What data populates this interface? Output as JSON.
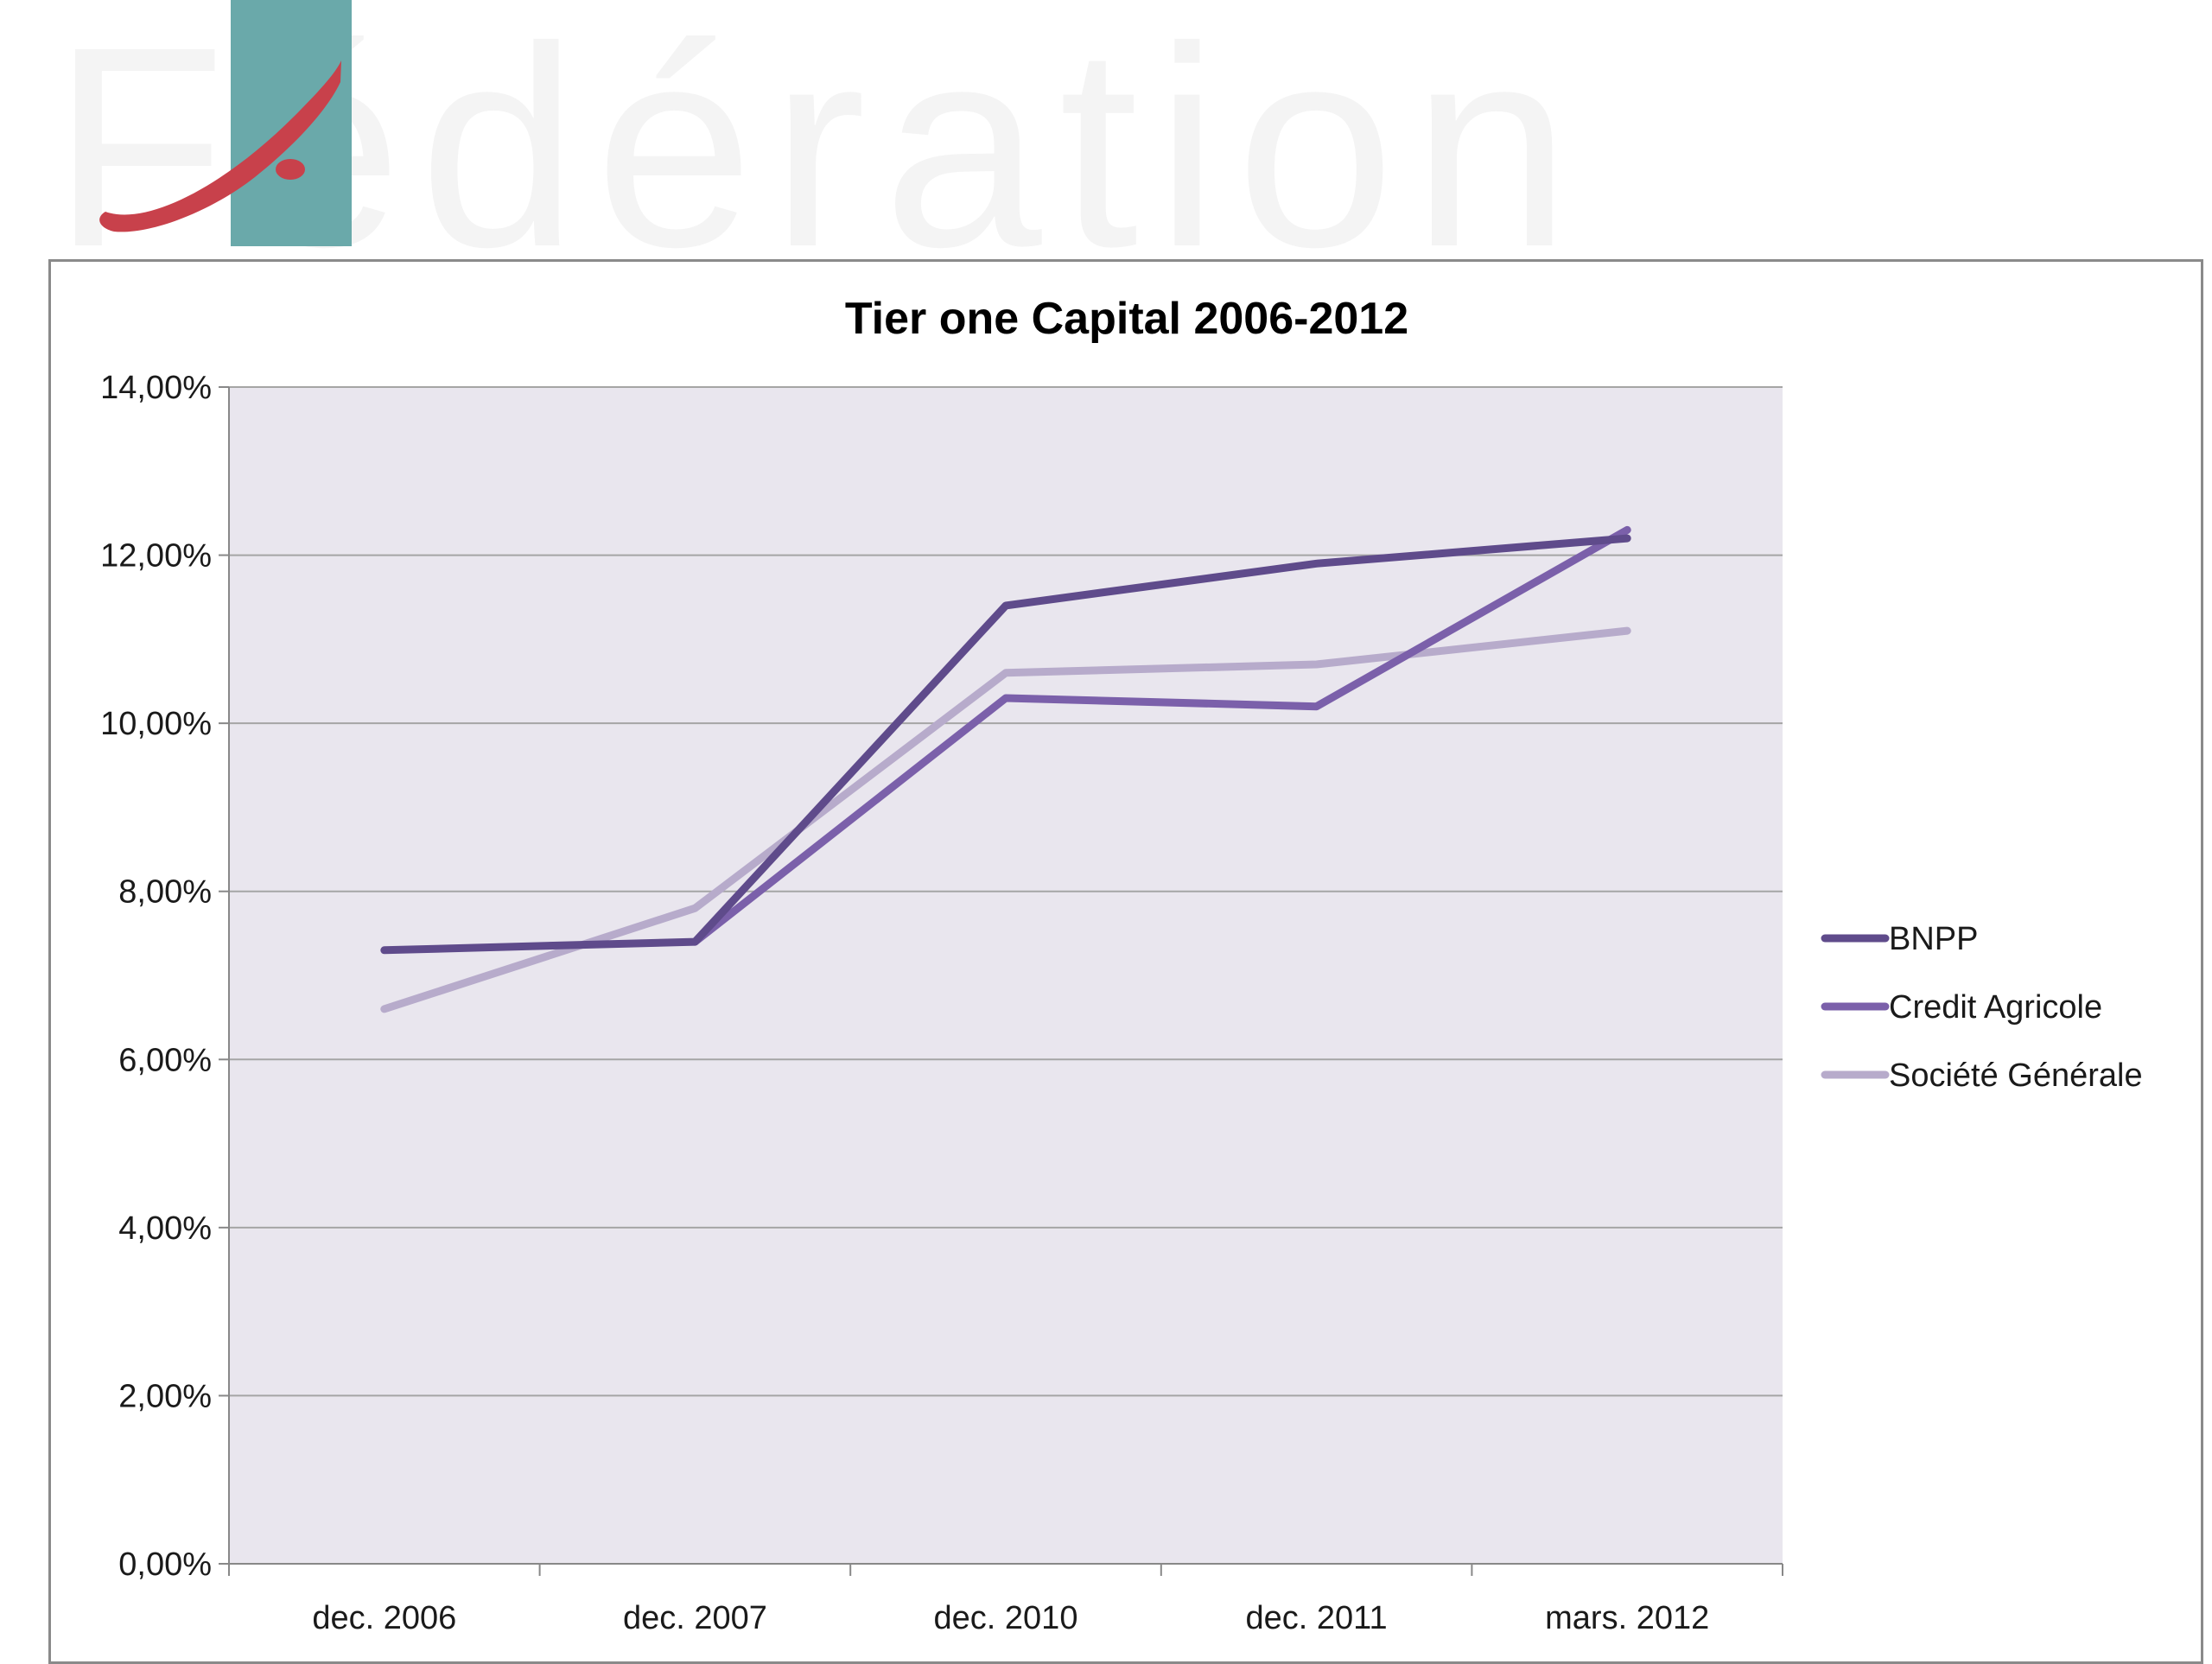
{
  "watermark": {
    "text": "Fédération"
  },
  "logo": {
    "name": "federation-logo"
  },
  "colors": {
    "plot_background": "#e9e6ee",
    "gridline": "#a5a5a5",
    "axis": "#888888",
    "logo_teal": "#6aa9aa",
    "logo_red": "#c8414b"
  },
  "chart_data": {
    "type": "line",
    "title": "Tier one Capital 2006-2012",
    "xlabel": "",
    "ylabel": "",
    "categories": [
      "dec. 2006",
      "dec. 2007",
      "dec. 2010",
      "dec. 2011",
      "mars. 2012"
    ],
    "ylim": [
      0,
      14
    ],
    "yticks": [
      0,
      2,
      4,
      6,
      8,
      10,
      12,
      14
    ],
    "ytick_labels": [
      "0,00%",
      "2,00%",
      "4,00%",
      "6,00%",
      "8,00%",
      "10,00%",
      "12,00%",
      "14,00%"
    ],
    "grid": true,
    "legend_position": "right",
    "series": [
      {
        "name": "BNPP",
        "color": "#5f4b8b",
        "values": [
          7.3,
          7.4,
          11.4,
          11.9,
          12.2
        ]
      },
      {
        "name": "Credit Agricole",
        "color": "#7b60aa",
        "values": [
          null,
          7.4,
          10.3,
          10.2,
          12.3
        ]
      },
      {
        "name": "Société Générale",
        "color": "#b7abcb",
        "values": [
          6.6,
          7.8,
          10.6,
          10.7,
          11.1
        ]
      }
    ]
  }
}
